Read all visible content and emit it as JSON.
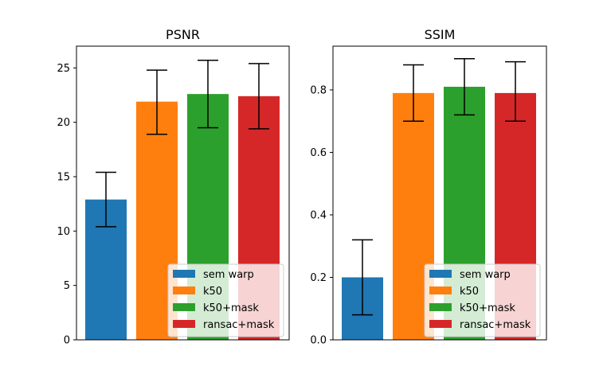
{
  "chart_data": [
    {
      "type": "bar",
      "title": "PSNR",
      "xlabel": "",
      "ylabel": "",
      "ylim": [
        0,
        27
      ],
      "yticks": [
        0,
        5,
        10,
        15,
        20,
        25
      ],
      "ytick_labels": [
        "0",
        "5",
        "10",
        "15",
        "20",
        "25"
      ],
      "grid": false,
      "legend_position": "lower-right",
      "series": [
        {
          "name": "sem warp",
          "value": 12.9,
          "err_low": 10.4,
          "err_high": 15.4,
          "color": "#1f77b4"
        },
        {
          "name": "k50",
          "value": 21.9,
          "err_low": 18.9,
          "err_high": 24.8,
          "color": "#ff7f0e"
        },
        {
          "name": "k50+mask",
          "value": 22.6,
          "err_low": 19.5,
          "err_high": 25.7,
          "color": "#2ca02c"
        },
        {
          "name": "ransac+mask",
          "value": 22.4,
          "err_low": 19.4,
          "err_high": 25.4,
          "color": "#d62728"
        }
      ]
    },
    {
      "type": "bar",
      "title": "SSIM",
      "xlabel": "",
      "ylabel": "",
      "ylim": [
        0,
        0.94
      ],
      "yticks": [
        0,
        0.2,
        0.4,
        0.6,
        0.8
      ],
      "ytick_labels": [
        "0.0",
        "0.2",
        "0.4",
        "0.6",
        "0.8"
      ],
      "grid": false,
      "legend_position": "lower-right",
      "series": [
        {
          "name": "sem warp",
          "value": 0.2,
          "err_low": 0.08,
          "err_high": 0.32,
          "color": "#1f77b4"
        },
        {
          "name": "k50",
          "value": 0.79,
          "err_low": 0.7,
          "err_high": 0.88,
          "color": "#ff7f0e"
        },
        {
          "name": "k50+mask",
          "value": 0.81,
          "err_low": 0.72,
          "err_high": 0.9,
          "color": "#2ca02c"
        },
        {
          "name": "ransac+mask",
          "value": 0.79,
          "err_low": 0.7,
          "err_high": 0.89,
          "color": "#d62728"
        }
      ]
    }
  ]
}
